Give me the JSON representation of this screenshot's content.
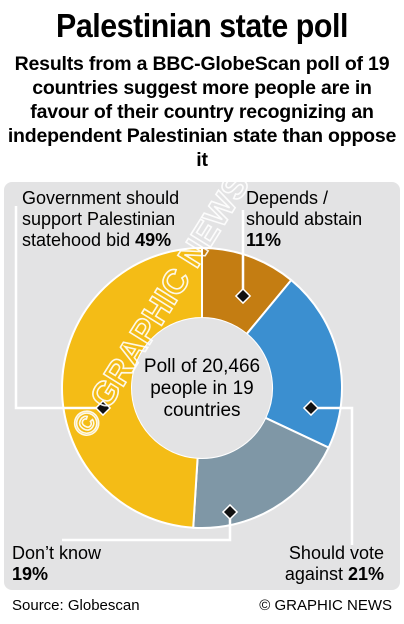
{
  "header": {
    "title": "Palestinian state poll",
    "subtitle": "Results from a BBC-GlobeScan poll of 19 countries suggest more people are in favour of their country recognizing an independent Palestinian state than oppose it"
  },
  "chart_data": {
    "type": "pie",
    "center_label": "Poll of 20,466 people in 19 countries",
    "slices": [
      {
        "label": "Depends / should abstain",
        "value": 11,
        "value_label": "11%",
        "color": "#c47d12"
      },
      {
        "label": "Should vote against",
        "value": 21,
        "value_label": "21%",
        "color": "#3b8fd0"
      },
      {
        "label": "Don’t know",
        "value": 19,
        "value_label": "19%",
        "color": "#7f97a6"
      },
      {
        "label": "Government should support Palestinian statehood bid",
        "value": 49,
        "value_label": "49%",
        "color": "#f4bc16"
      }
    ],
    "labels": {
      "gov_line1": "Government should",
      "gov_line2": "support Palestinian",
      "gov_line3": "statehood bid",
      "dep_line1": "Depends /",
      "dep_line2": "should abstain",
      "dk_line1": "Don’t know",
      "sva_line1": "Should vote",
      "sva_line2": "against"
    }
  },
  "footer": {
    "source": "Source: Globescan",
    "credit": "© GRAPHIC NEWS"
  },
  "watermark": "© GRAPHIC NEWS"
}
